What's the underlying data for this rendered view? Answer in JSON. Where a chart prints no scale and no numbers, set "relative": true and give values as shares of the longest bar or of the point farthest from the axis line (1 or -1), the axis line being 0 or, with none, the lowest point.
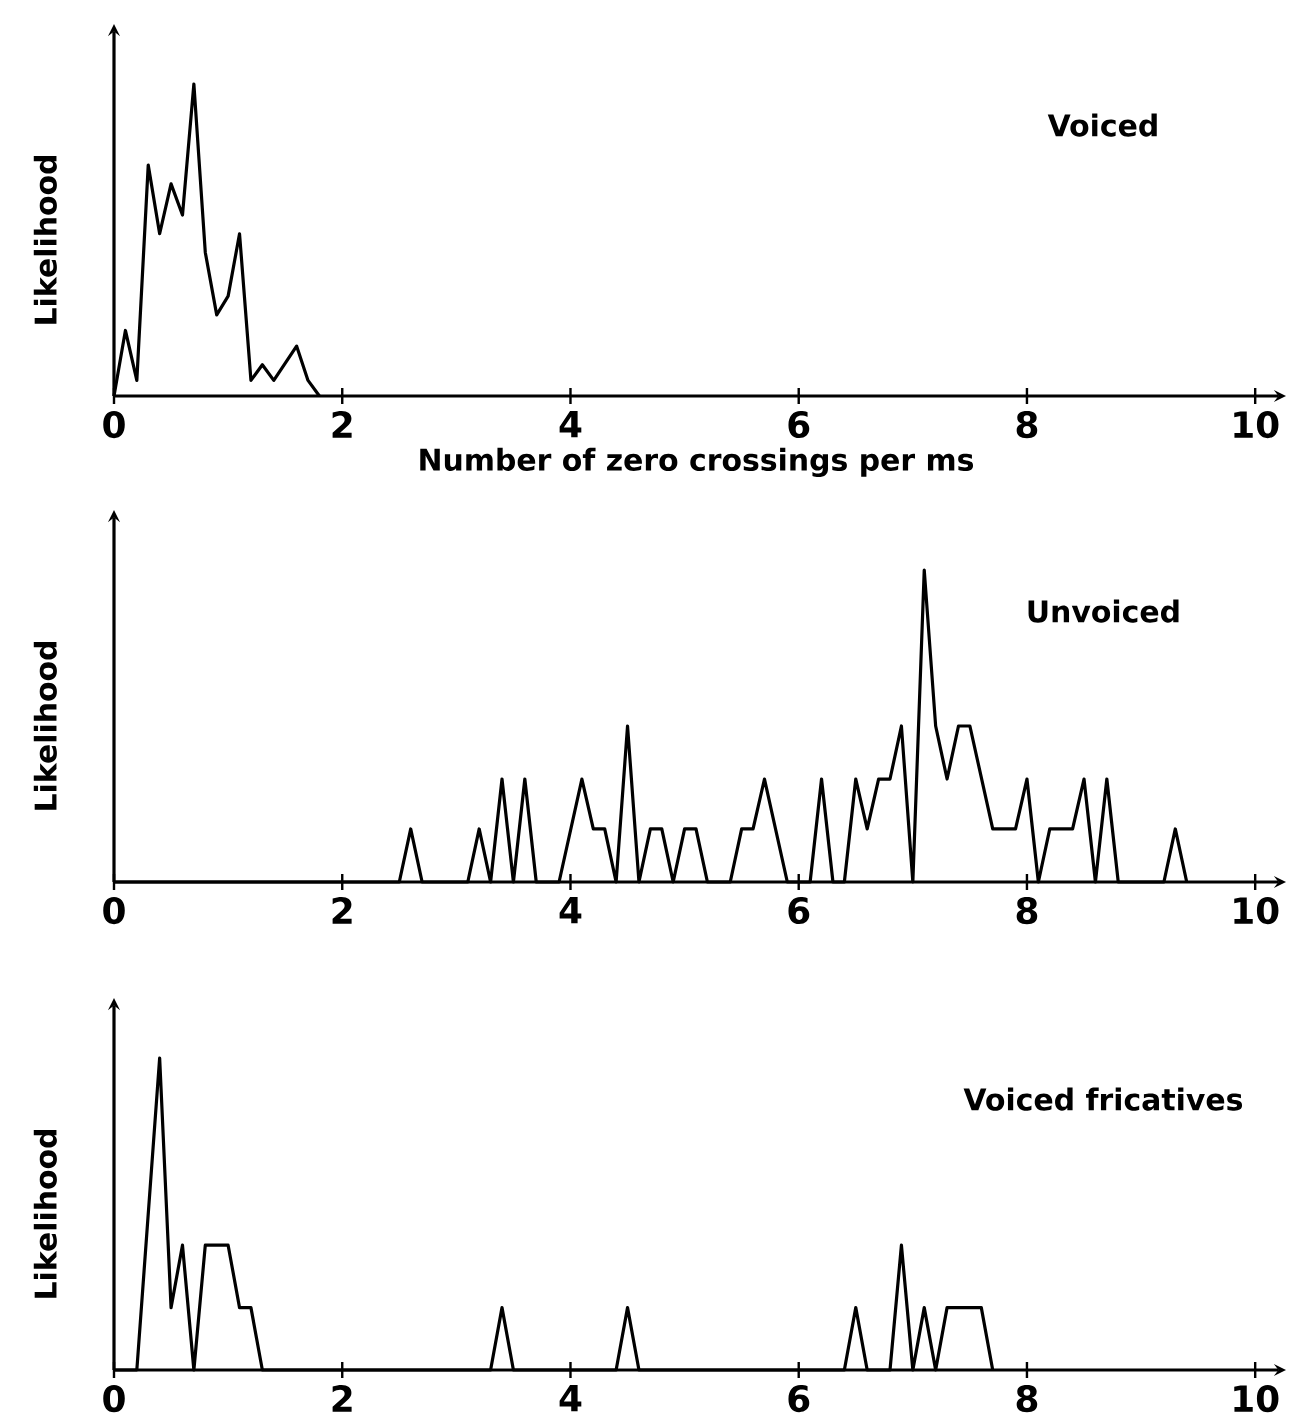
{
  "chart_data": [
    {
      "type": "line",
      "title": "Voiced",
      "xlabel": "Number of zero crossings per ms",
      "ylabel": "Likelihood",
      "relative": true,
      "xlim": [
        0,
        10.2
      ],
      "xticks": [
        0,
        2,
        4,
        6,
        8,
        10
      ],
      "marker": "none",
      "line_style": "solid",
      "color": "#000000",
      "x": [
        0,
        0.1,
        0.2,
        0.3,
        0.4,
        0.5,
        0.6,
        0.7,
        0.8,
        0.9,
        1.0,
        1.1,
        1.2,
        1.3,
        1.4,
        1.6,
        1.7,
        1.8
      ],
      "values": [
        0,
        0.21,
        0.05,
        0.74,
        0.52,
        0.68,
        0.58,
        1,
        0.46,
        0.26,
        0.32,
        0.52,
        0.05,
        0.1,
        0.05,
        0.16,
        0.05,
        0
      ]
    },
    {
      "type": "line",
      "title": "Unvoiced",
      "ylabel": "Likelihood",
      "relative": true,
      "xlim": [
        0,
        10.2
      ],
      "xticks": [
        0,
        2,
        4,
        6,
        8,
        10
      ],
      "marker": "none",
      "line_style": "solid",
      "color": "#000000",
      "x": [
        0,
        2.5,
        2.6,
        2.7,
        3.1,
        3.2,
        3.3,
        3.4,
        3.5,
        3.6,
        3.7,
        3.9,
        4.1,
        4.2,
        4.3,
        4.4,
        4.5,
        4.6,
        4.7,
        4.8,
        4.9,
        5.0,
        5.1,
        5.2,
        5.4,
        5.5,
        5.6,
        5.7,
        5.9,
        6.1,
        6.2,
        6.3,
        6.4,
        6.5,
        6.6,
        6.7,
        6.8,
        6.9,
        7.0,
        7.1,
        7.2,
        7.3,
        7.4,
        7.5,
        7.7,
        7.9,
        8.0,
        8.1,
        8.2,
        8.4,
        8.5,
        8.6,
        8.7,
        8.8,
        9.2,
        9.3,
        9.4
      ],
      "values": [
        0,
        0,
        0.17,
        0,
        0,
        0.17,
        0,
        0.33,
        0,
        0.33,
        0,
        0,
        0.33,
        0.17,
        0.17,
        0,
        0.5,
        0,
        0.17,
        0.17,
        0,
        0.17,
        0.17,
        0,
        0,
        0.17,
        0.17,
        0.33,
        0,
        0,
        0.33,
        0,
        0,
        0.33,
        0.17,
        0.33,
        0.33,
        0.5,
        0,
        1,
        0.5,
        0.33,
        0.5,
        0.5,
        0.17,
        0.17,
        0.33,
        0,
        0.17,
        0.17,
        0.33,
        0,
        0.33,
        0,
        0,
        0.17,
        0
      ]
    },
    {
      "type": "line",
      "title": "Voiced fricatives",
      "ylabel": "Likelihood",
      "relative": true,
      "xlim": [
        0,
        10.2
      ],
      "xticks": [
        0,
        2,
        4,
        6,
        8,
        10
      ],
      "marker": "none",
      "line_style": "solid",
      "color": "#000000",
      "x": [
        0,
        0.2,
        0.4,
        0.5,
        0.6,
        0.7,
        0.8,
        1.0,
        1.1,
        1.2,
        1.3,
        3.3,
        3.4,
        3.5,
        4.4,
        4.5,
        4.6,
        6.4,
        6.5,
        6.6,
        6.8,
        6.9,
        7.0,
        7.1,
        7.2,
        7.3,
        7.6,
        7.7
      ],
      "values": [
        0,
        0,
        1,
        0.2,
        0.4,
        0,
        0.4,
        0.4,
        0.2,
        0.2,
        0,
        0,
        0.2,
        0,
        0,
        0.2,
        0,
        0,
        0.2,
        0,
        0,
        0.4,
        0,
        0.2,
        0,
        0.2,
        0.2,
        0
      ]
    }
  ]
}
